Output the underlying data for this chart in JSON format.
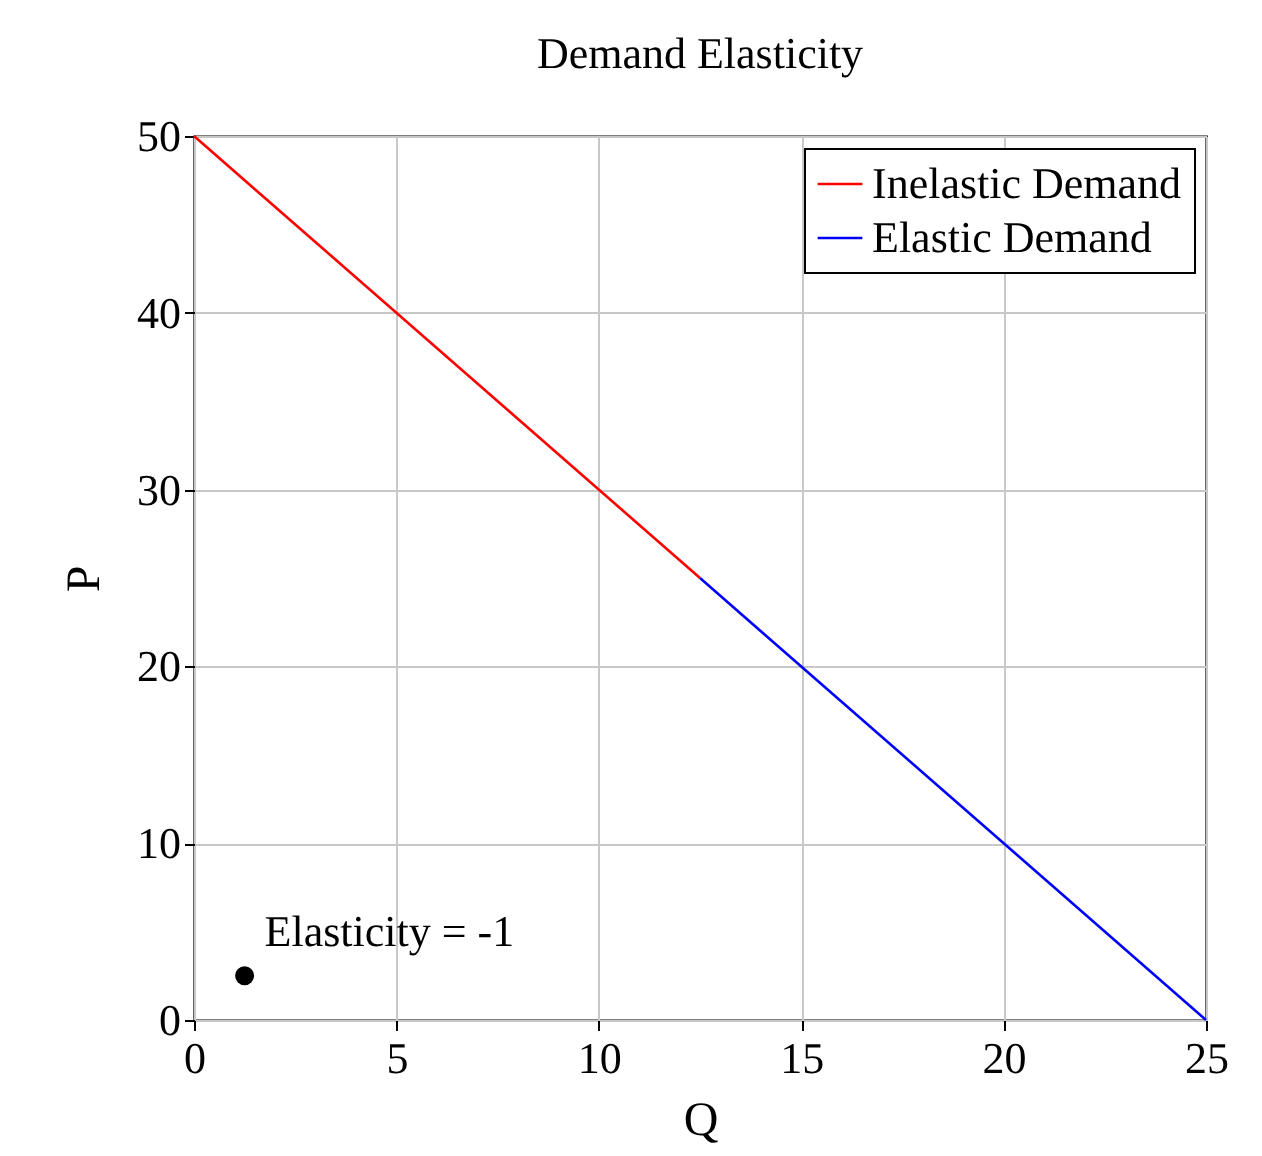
{
  "chart_data": {
    "type": "line",
    "title": "Demand Elasticity",
    "xlabel": "Q",
    "ylabel": "P",
    "xlim": [
      0,
      25
    ],
    "xticks": [
      0,
      5,
      10,
      15,
      20,
      25
    ],
    "ylim": [
      0,
      50
    ],
    "yticks": [
      0,
      10,
      20,
      30,
      40,
      50
    ],
    "grid": true,
    "legend": "top right",
    "series": [
      {
        "name": "Inelastic Demand",
        "color": "#ff0000",
        "x": [
          0,
          12.5
        ],
        "values": [
          50,
          25
        ]
      },
      {
        "name": "Elastic Demand",
        "color": "#0000ff",
        "x": [
          12.5,
          25
        ],
        "values": [
          25,
          0
        ]
      },
      {
        "type": "scatter",
        "marker": "circle",
        "color": "#000000",
        "x": [
          1.25
        ],
        "values": [
          2.5
        ]
      }
    ],
    "annotations": [
      {
        "text": "Elasticity = -1",
        "x": 1.25,
        "y": 2.5
      }
    ]
  }
}
